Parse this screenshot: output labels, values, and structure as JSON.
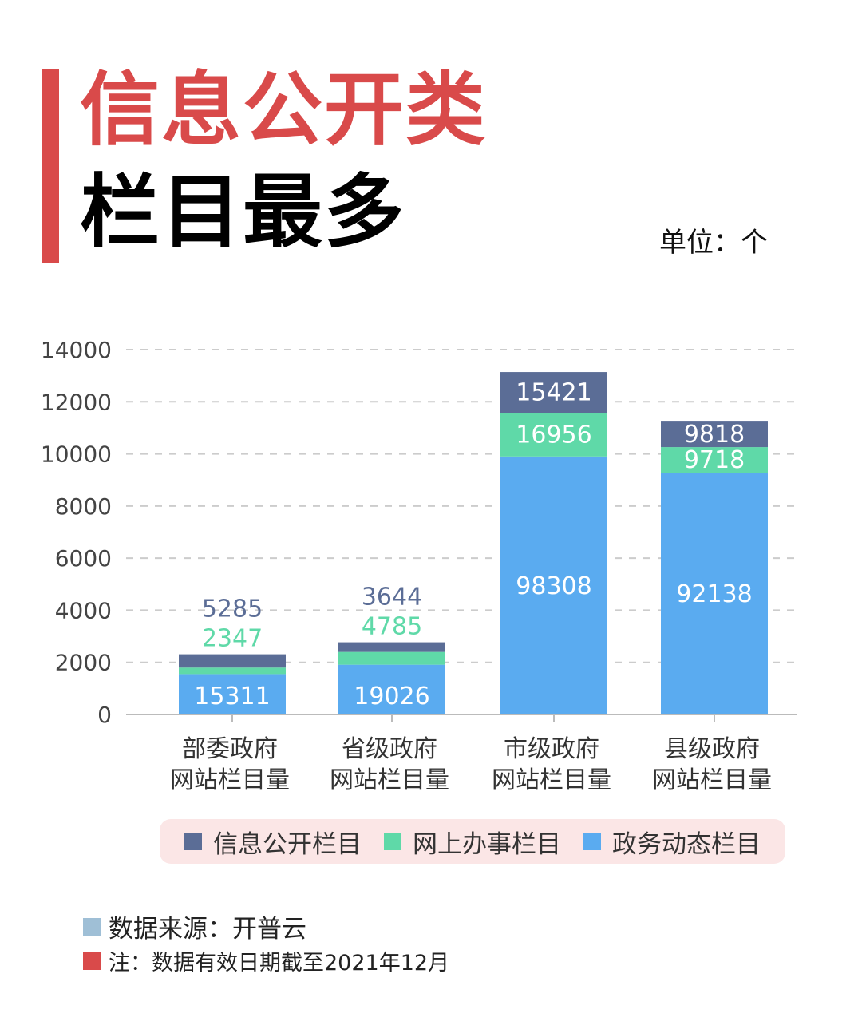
{
  "header": {
    "title_line1": "信息公开类",
    "title_line2": "栏目最多",
    "unit": "单位：个"
  },
  "colors": {
    "accent": "#d94a4a",
    "info": "#5b6d96",
    "service": "#5fd9a8",
    "news": "#5aabf0"
  },
  "chart_data": {
    "type": "bar",
    "stacked": true,
    "categories": [
      [
        "部委政府",
        "网站栏目量"
      ],
      [
        "省级政府",
        "网站栏目量"
      ],
      [
        "市级政府",
        "网站栏目量"
      ],
      [
        "县级政府",
        "网站栏目量"
      ]
    ],
    "series": [
      {
        "name": "政务动态栏目",
        "labels": [
          15311,
          19026,
          98308,
          92138
        ],
        "plotted": [
          1550,
          1910,
          9900,
          9280
        ]
      },
      {
        "name": "网上办事栏目",
        "labels": [
          2347,
          4785,
          16956,
          9718
        ],
        "plotted": [
          250,
          490,
          1680,
          980
        ]
      },
      {
        "name": "信息公开栏目",
        "labels": [
          5285,
          3644,
          15421,
          9818
        ],
        "plotted": [
          510,
          370,
          1560,
          980
        ]
      }
    ],
    "yticks": [
      "0",
      "2000",
      "4000",
      "6000",
      "8000",
      "10000",
      "12000",
      "14000"
    ],
    "ylim": [
      0,
      14000
    ],
    "grid": true,
    "legend": "bottom"
  },
  "footer": {
    "source": "数据来源：开普云",
    "note": "注：数据有效日期截至2021年12月"
  }
}
